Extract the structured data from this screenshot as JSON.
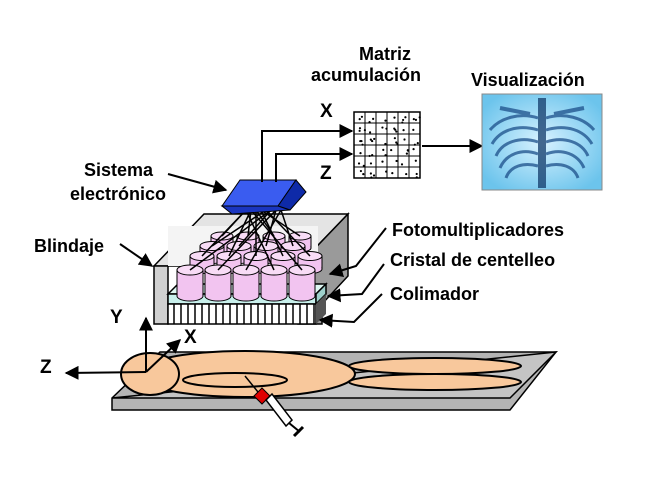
{
  "labels": {
    "matrix_line1": "Matriz",
    "matrix_line2": "acumulación",
    "visualization": "Visualización",
    "electronics_line1": "Sistema",
    "electronics_line2": "electrónico",
    "shielding": "Blindaje",
    "photomultipliers": "Fotomultiplicadores",
    "crystal": "Cristal de centelleo",
    "collimator": "Colimador"
  },
  "axes": {
    "matrix_x": "X",
    "matrix_z": "Z",
    "patient_y": "Y",
    "patient_x": "X",
    "patient_z": "Z"
  },
  "colors": {
    "electronics_box": "#1f3fd0",
    "shield": "#c8c8c8",
    "pmt_tubes": "#f2c4f0",
    "crystal": "#c8f0ec",
    "patient": "#f8c89c",
    "table": "#b4b4b4",
    "xray_bg": "#7ecff0",
    "syringe_tip": "#e00000"
  }
}
